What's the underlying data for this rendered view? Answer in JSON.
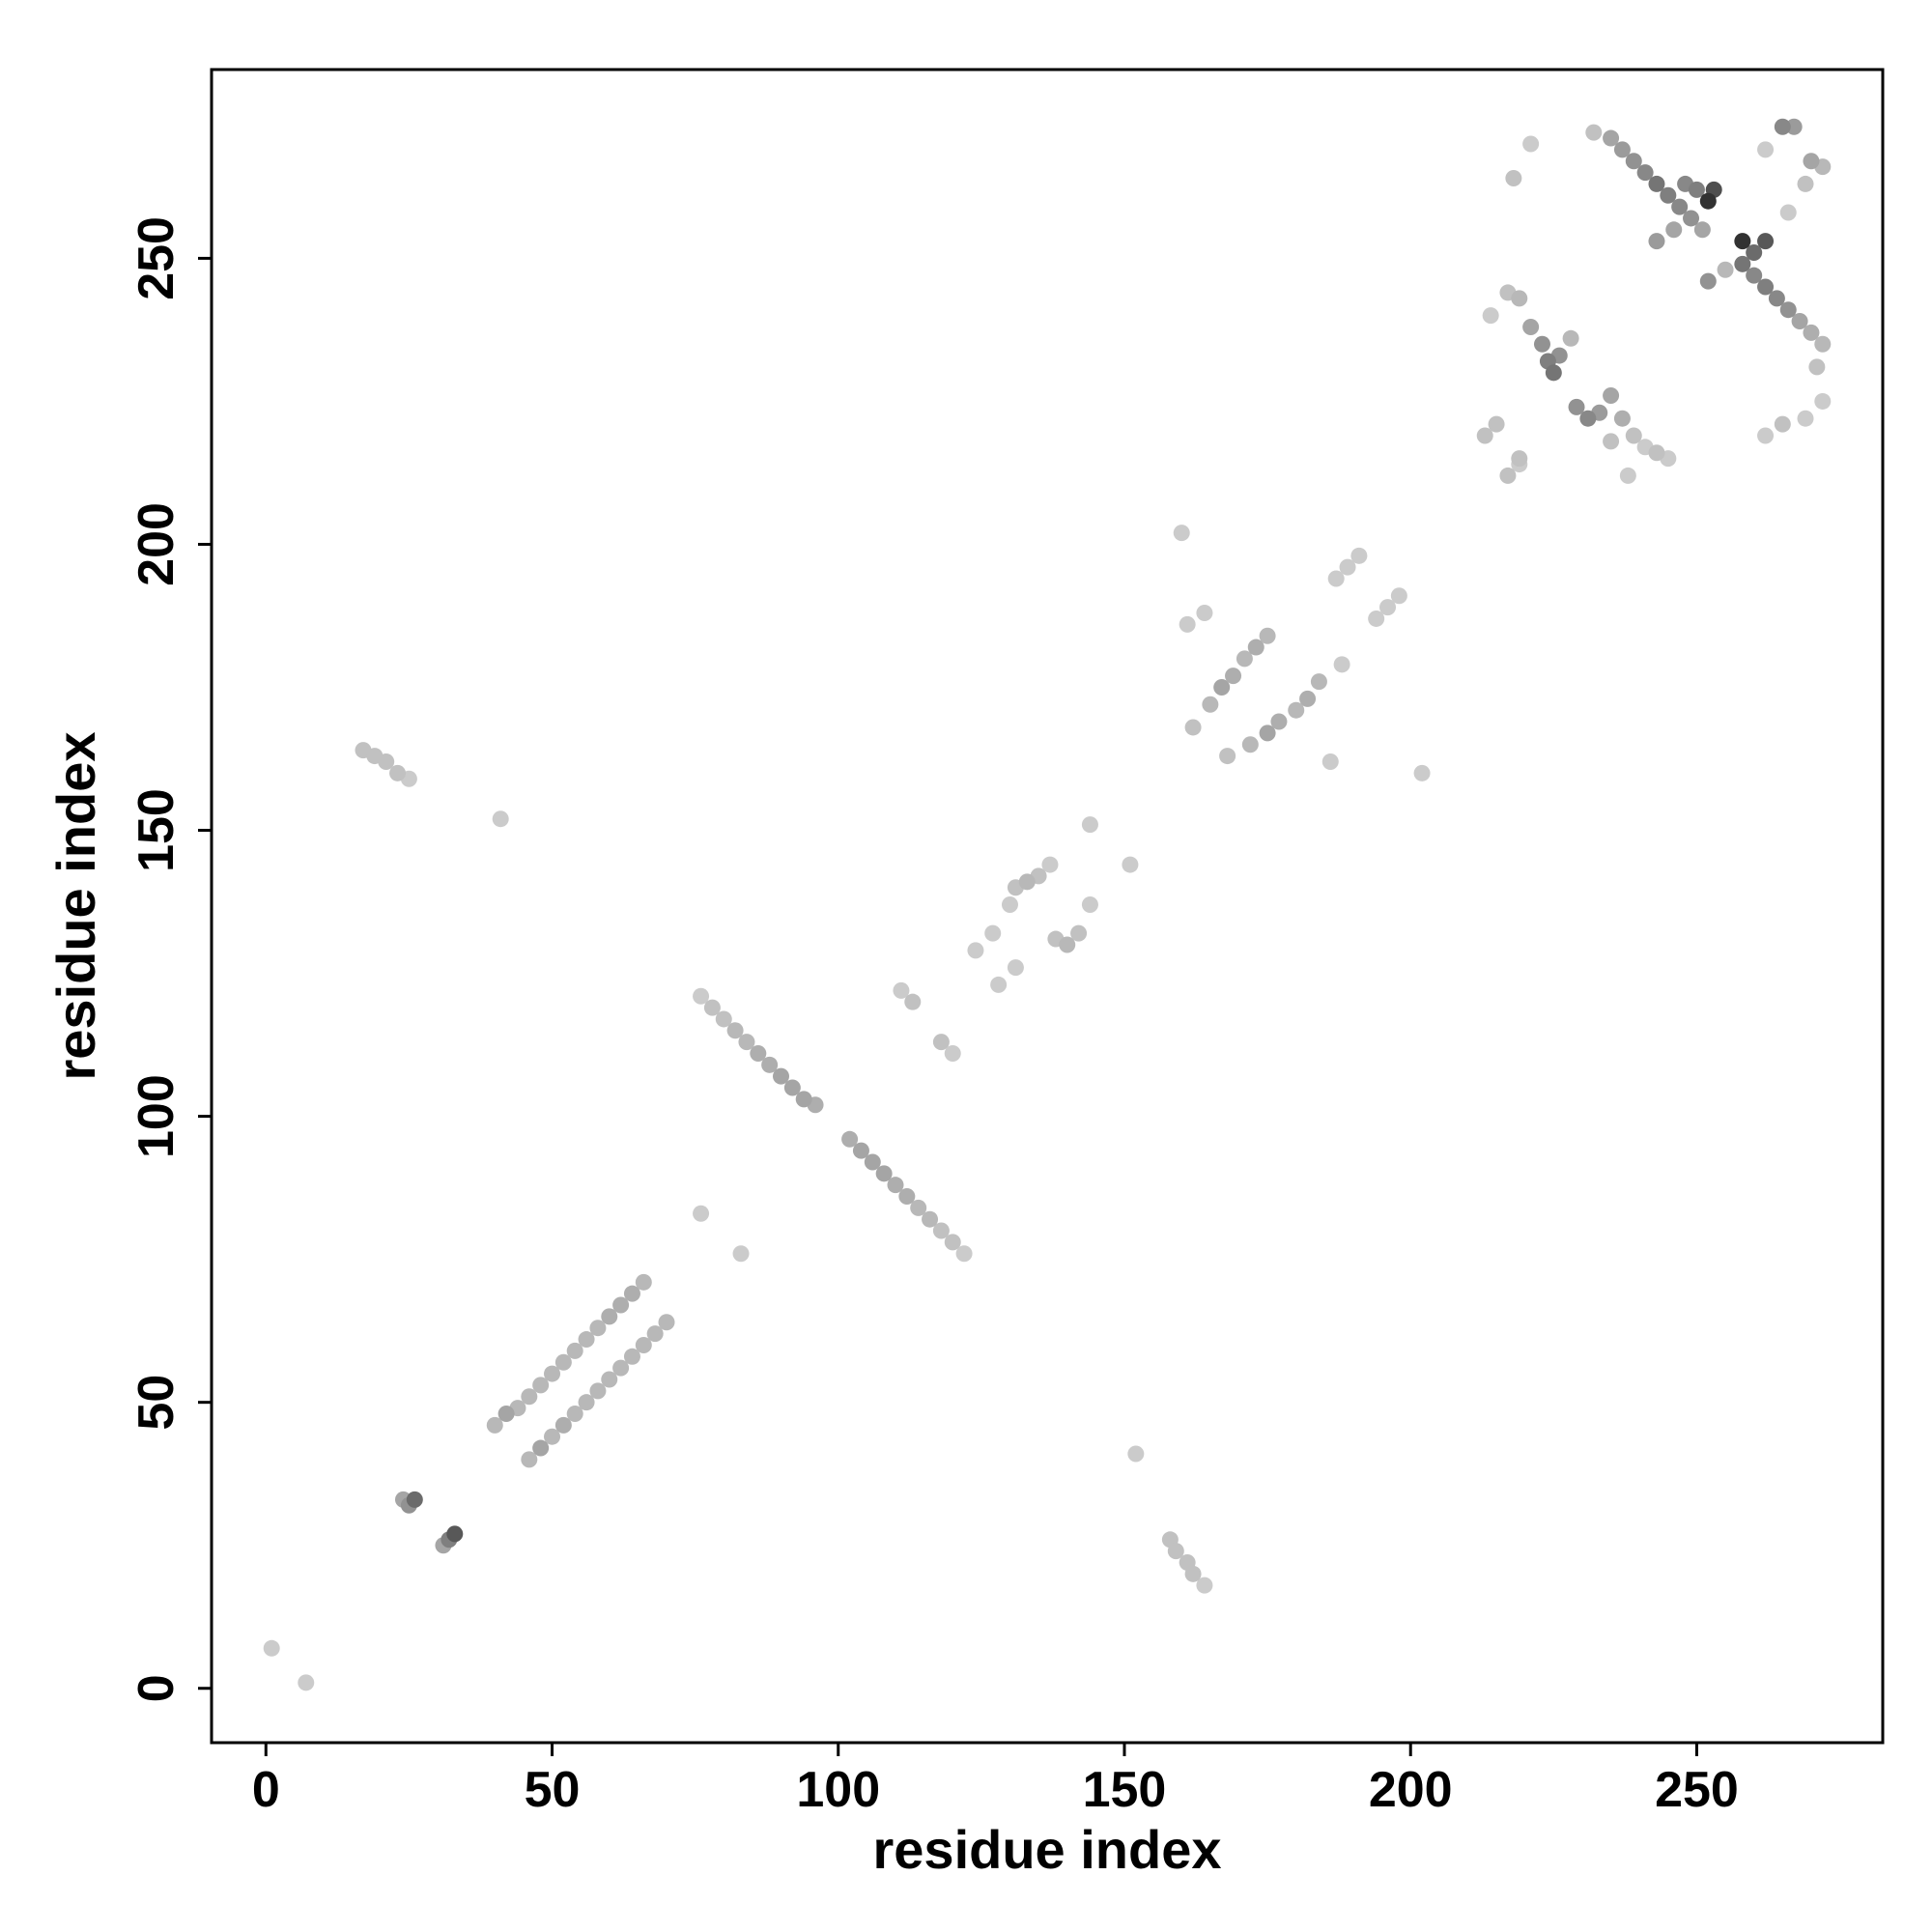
{
  "chart_data": {
    "type": "scatter",
    "title": "",
    "xlabel": "residue index",
    "ylabel": "residue index",
    "xlim": [
      -9.5,
      282.5
    ],
    "ylim": [
      -9.5,
      283.0
    ],
    "xticks": [
      0,
      50,
      100,
      150,
      200,
      250
    ],
    "yticks": [
      0,
      50,
      100,
      150,
      200,
      250
    ],
    "grid": false,
    "legend": "none",
    "point_color_scale": [
      "#dedede",
      "#1f1f1f"
    ],
    "value_note": "",
    "points": [
      {
        "x": 1,
        "y": 7,
        "v": 0.1
      },
      {
        "x": 7,
        "y": 1,
        "v": 0.1
      },
      {
        "x": 24,
        "y": 33,
        "v": 0.3
      },
      {
        "x": 25,
        "y": 32,
        "v": 0.4
      },
      {
        "x": 26,
        "y": 33,
        "v": 0.6
      },
      {
        "x": 31,
        "y": 25,
        "v": 0.3
      },
      {
        "x": 32,
        "y": 26,
        "v": 0.5
      },
      {
        "x": 33,
        "y": 27,
        "v": 0.7
      },
      {
        "x": 40,
        "y": 46,
        "v": 0.2
      },
      {
        "x": 42,
        "y": 48,
        "v": 0.3
      },
      {
        "x": 44,
        "y": 49,
        "v": 0.2
      },
      {
        "x": 46,
        "y": 51,
        "v": 0.2
      },
      {
        "x": 48,
        "y": 53,
        "v": 0.2
      },
      {
        "x": 50,
        "y": 55,
        "v": 0.2
      },
      {
        "x": 52,
        "y": 57,
        "v": 0.2
      },
      {
        "x": 54,
        "y": 59,
        "v": 0.2
      },
      {
        "x": 56,
        "y": 61,
        "v": 0.2
      },
      {
        "x": 58,
        "y": 63,
        "v": 0.2
      },
      {
        "x": 60,
        "y": 65,
        "v": 0.25
      },
      {
        "x": 62,
        "y": 67,
        "v": 0.25
      },
      {
        "x": 64,
        "y": 69,
        "v": 0.25
      },
      {
        "x": 66,
        "y": 71,
        "v": 0.2
      },
      {
        "x": 46,
        "y": 40,
        "v": 0.2
      },
      {
        "x": 48,
        "y": 42,
        "v": 0.3
      },
      {
        "x": 50,
        "y": 44,
        "v": 0.2
      },
      {
        "x": 52,
        "y": 46,
        "v": 0.25
      },
      {
        "x": 54,
        "y": 48,
        "v": 0.2
      },
      {
        "x": 56,
        "y": 50,
        "v": 0.2
      },
      {
        "x": 58,
        "y": 52,
        "v": 0.2
      },
      {
        "x": 60,
        "y": 54,
        "v": 0.2
      },
      {
        "x": 62,
        "y": 56,
        "v": 0.2
      },
      {
        "x": 64,
        "y": 58,
        "v": 0.2
      },
      {
        "x": 66,
        "y": 60,
        "v": 0.2
      },
      {
        "x": 68,
        "y": 62,
        "v": 0.2
      },
      {
        "x": 70,
        "y": 64,
        "v": 0.2
      },
      {
        "x": 76,
        "y": 83,
        "v": 0.1
      },
      {
        "x": 83,
        "y": 76,
        "v": 0.1
      },
      {
        "x": 76,
        "y": 121,
        "v": 0.1
      },
      {
        "x": 78,
        "y": 119,
        "v": 0.15
      },
      {
        "x": 80,
        "y": 117,
        "v": 0.15
      },
      {
        "x": 82,
        "y": 115,
        "v": 0.2
      },
      {
        "x": 84,
        "y": 113,
        "v": 0.2
      },
      {
        "x": 86,
        "y": 111,
        "v": 0.25
      },
      {
        "x": 88,
        "y": 109,
        "v": 0.25
      },
      {
        "x": 90,
        "y": 107,
        "v": 0.3
      },
      {
        "x": 92,
        "y": 105,
        "v": 0.3
      },
      {
        "x": 94,
        "y": 103,
        "v": 0.3
      },
      {
        "x": 96,
        "y": 102,
        "v": 0.25
      },
      {
        "x": 102,
        "y": 96,
        "v": 0.25
      },
      {
        "x": 104,
        "y": 94,
        "v": 0.3
      },
      {
        "x": 106,
        "y": 92,
        "v": 0.3
      },
      {
        "x": 108,
        "y": 90,
        "v": 0.3
      },
      {
        "x": 110,
        "y": 88,
        "v": 0.25
      },
      {
        "x": 112,
        "y": 86,
        "v": 0.25
      },
      {
        "x": 114,
        "y": 84,
        "v": 0.2
      },
      {
        "x": 116,
        "y": 82,
        "v": 0.2
      },
      {
        "x": 118,
        "y": 80,
        "v": 0.15
      },
      {
        "x": 120,
        "y": 78,
        "v": 0.15
      },
      {
        "x": 122,
        "y": 76,
        "v": 0.1
      },
      {
        "x": 111,
        "y": 122,
        "v": 0.1
      },
      {
        "x": 113,
        "y": 120,
        "v": 0.15
      },
      {
        "x": 118,
        "y": 113,
        "v": 0.15
      },
      {
        "x": 120,
        "y": 111,
        "v": 0.1
      },
      {
        "x": 124,
        "y": 129,
        "v": 0.1
      },
      {
        "x": 127,
        "y": 132,
        "v": 0.1
      },
      {
        "x": 130,
        "y": 137,
        "v": 0.1
      },
      {
        "x": 131,
        "y": 140,
        "v": 0.15
      },
      {
        "x": 133,
        "y": 141,
        "v": 0.2
      },
      {
        "x": 135,
        "y": 142,
        "v": 0.15
      },
      {
        "x": 137,
        "y": 144,
        "v": 0.1
      },
      {
        "x": 144,
        "y": 151,
        "v": 0.1
      },
      {
        "x": 128,
        "y": 123,
        "v": 0.1
      },
      {
        "x": 131,
        "y": 126,
        "v": 0.1
      },
      {
        "x": 138,
        "y": 131,
        "v": 0.15
      },
      {
        "x": 140,
        "y": 130,
        "v": 0.2
      },
      {
        "x": 142,
        "y": 132,
        "v": 0.15
      },
      {
        "x": 144,
        "y": 137,
        "v": 0.1
      },
      {
        "x": 151,
        "y": 144,
        "v": 0.1
      },
      {
        "x": 41,
        "y": 152,
        "v": 0.1
      },
      {
        "x": 152,
        "y": 41,
        "v": 0.1
      },
      {
        "x": 17,
        "y": 164,
        "v": 0.15
      },
      {
        "x": 19,
        "y": 163,
        "v": 0.15
      },
      {
        "x": 21,
        "y": 162,
        "v": 0.15
      },
      {
        "x": 23,
        "y": 160,
        "v": 0.15
      },
      {
        "x": 25,
        "y": 159,
        "v": 0.1
      },
      {
        "x": 158,
        "y": 26,
        "v": 0.15
      },
      {
        "x": 159,
        "y": 24,
        "v": 0.15
      },
      {
        "x": 161,
        "y": 22,
        "v": 0.15
      },
      {
        "x": 162,
        "y": 20,
        "v": 0.15
      },
      {
        "x": 164,
        "y": 18,
        "v": 0.1
      },
      {
        "x": 160,
        "y": 202,
        "v": 0.1
      },
      {
        "x": 202,
        "y": 160,
        "v": 0.1
      },
      {
        "x": 162,
        "y": 168,
        "v": 0.15
      },
      {
        "x": 165,
        "y": 172,
        "v": 0.2
      },
      {
        "x": 167,
        "y": 175,
        "v": 0.3
      },
      {
        "x": 169,
        "y": 177,
        "v": 0.25
      },
      {
        "x": 171,
        "y": 180,
        "v": 0.2
      },
      {
        "x": 173,
        "y": 182,
        "v": 0.25
      },
      {
        "x": 175,
        "y": 184,
        "v": 0.2
      },
      {
        "x": 161,
        "y": 186,
        "v": 0.1
      },
      {
        "x": 164,
        "y": 188,
        "v": 0.1
      },
      {
        "x": 168,
        "y": 163,
        "v": 0.15
      },
      {
        "x": 172,
        "y": 165,
        "v": 0.2
      },
      {
        "x": 175,
        "y": 167,
        "v": 0.3
      },
      {
        "x": 177,
        "y": 169,
        "v": 0.25
      },
      {
        "x": 180,
        "y": 171,
        "v": 0.2
      },
      {
        "x": 182,
        "y": 173,
        "v": 0.25
      },
      {
        "x": 184,
        "y": 176,
        "v": 0.2
      },
      {
        "x": 186,
        "y": 162,
        "v": 0.1
      },
      {
        "x": 188,
        "y": 179,
        "v": 0.1
      },
      {
        "x": 187,
        "y": 194,
        "v": 0.1
      },
      {
        "x": 189,
        "y": 196,
        "v": 0.1
      },
      {
        "x": 191,
        "y": 198,
        "v": 0.1
      },
      {
        "x": 194,
        "y": 187,
        "v": 0.1
      },
      {
        "x": 196,
        "y": 189,
        "v": 0.1
      },
      {
        "x": 198,
        "y": 191,
        "v": 0.1
      },
      {
        "x": 213,
        "y": 219,
        "v": 0.15
      },
      {
        "x": 215,
        "y": 221,
        "v": 0.15
      },
      {
        "x": 214,
        "y": 240,
        "v": 0.1
      },
      {
        "x": 217,
        "y": 244,
        "v": 0.15
      },
      {
        "x": 219,
        "y": 243,
        "v": 0.2
      },
      {
        "x": 221,
        "y": 238,
        "v": 0.3
      },
      {
        "x": 223,
        "y": 235,
        "v": 0.4
      },
      {
        "x": 224,
        "y": 232,
        "v": 0.5
      },
      {
        "x": 225,
        "y": 230,
        "v": 0.55
      },
      {
        "x": 226,
        "y": 233,
        "v": 0.4
      },
      {
        "x": 228,
        "y": 236,
        "v": 0.2
      },
      {
        "x": 217,
        "y": 212,
        "v": 0.15
      },
      {
        "x": 219,
        "y": 214,
        "v": 0.1
      },
      {
        "x": 218,
        "y": 264,
        "v": 0.15
      },
      {
        "x": 221,
        "y": 270,
        "v": 0.1
      },
      {
        "x": 219,
        "y": 215,
        "v": 0.15
      },
      {
        "x": 229,
        "y": 224,
        "v": 0.4
      },
      {
        "x": 231,
        "y": 222,
        "v": 0.45
      },
      {
        "x": 233,
        "y": 223,
        "v": 0.35
      },
      {
        "x": 235,
        "y": 226,
        "v": 0.3
      },
      {
        "x": 237,
        "y": 222,
        "v": 0.25
      },
      {
        "x": 239,
        "y": 219,
        "v": 0.15
      },
      {
        "x": 241,
        "y": 217,
        "v": 0.1
      },
      {
        "x": 243,
        "y": 216,
        "v": 0.15
      },
      {
        "x": 245,
        "y": 215,
        "v": 0.1
      },
      {
        "x": 238,
        "y": 212,
        "v": 0.1
      },
      {
        "x": 235,
        "y": 218,
        "v": 0.15
      },
      {
        "x": 232,
        "y": 272,
        "v": 0.15
      },
      {
        "x": 235,
        "y": 271,
        "v": 0.3
      },
      {
        "x": 237,
        "y": 269,
        "v": 0.35
      },
      {
        "x": 239,
        "y": 267,
        "v": 0.4
      },
      {
        "x": 241,
        "y": 265,
        "v": 0.45
      },
      {
        "x": 243,
        "y": 263,
        "v": 0.55
      },
      {
        "x": 245,
        "y": 261,
        "v": 0.5
      },
      {
        "x": 247,
        "y": 259,
        "v": 0.45
      },
      {
        "x": 249,
        "y": 257,
        "v": 0.4
      },
      {
        "x": 251,
        "y": 255,
        "v": 0.3
      },
      {
        "x": 243,
        "y": 253,
        "v": 0.35
      },
      {
        "x": 246,
        "y": 255,
        "v": 0.3
      },
      {
        "x": 252,
        "y": 260,
        "v": 0.9
      },
      {
        "x": 253,
        "y": 262,
        "v": 0.75
      },
      {
        "x": 250,
        "y": 262,
        "v": 0.5
      },
      {
        "x": 248,
        "y": 263,
        "v": 0.45
      },
      {
        "x": 252,
        "y": 246,
        "v": 0.4
      },
      {
        "x": 255,
        "y": 248,
        "v": 0.2
      },
      {
        "x": 258,
        "y": 253,
        "v": 0.9
      },
      {
        "x": 260,
        "y": 251,
        "v": 0.6
      },
      {
        "x": 262,
        "y": 253,
        "v": 0.7
      },
      {
        "x": 258,
        "y": 249,
        "v": 0.55
      },
      {
        "x": 260,
        "y": 247,
        "v": 0.45
      },
      {
        "x": 262,
        "y": 245,
        "v": 0.5
      },
      {
        "x": 264,
        "y": 243,
        "v": 0.45
      },
      {
        "x": 266,
        "y": 241,
        "v": 0.4
      },
      {
        "x": 268,
        "y": 239,
        "v": 0.3
      },
      {
        "x": 270,
        "y": 237,
        "v": 0.25
      },
      {
        "x": 272,
        "y": 235,
        "v": 0.2
      },
      {
        "x": 271,
        "y": 231,
        "v": 0.15
      },
      {
        "x": 272,
        "y": 225,
        "v": 0.1
      },
      {
        "x": 269,
        "y": 222,
        "v": 0.1
      },
      {
        "x": 265,
        "y": 221,
        "v": 0.15
      },
      {
        "x": 262,
        "y": 219,
        "v": 0.1
      },
      {
        "x": 262,
        "y": 269,
        "v": 0.1
      },
      {
        "x": 265,
        "y": 273,
        "v": 0.45
      },
      {
        "x": 267,
        "y": 273,
        "v": 0.35
      },
      {
        "x": 270,
        "y": 267,
        "v": 0.3
      },
      {
        "x": 272,
        "y": 266,
        "v": 0.2
      },
      {
        "x": 269,
        "y": 263,
        "v": 0.15
      },
      {
        "x": 266,
        "y": 258,
        "v": 0.1
      }
    ]
  }
}
